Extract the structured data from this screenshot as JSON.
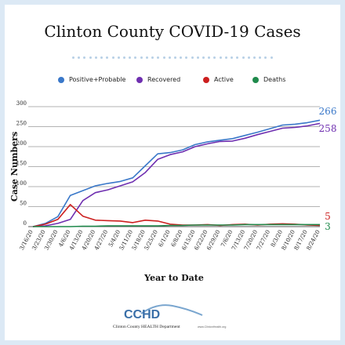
{
  "title": "Clinton County COVID-19 Cases",
  "chart_data": {
    "type": "line",
    "xlabel": "Year to Date",
    "ylabel": "Case Numbers",
    "ylim": [
      0,
      300
    ],
    "yticks": [
      0,
      50,
      100,
      150,
      200,
      250,
      300
    ],
    "grid": "horizontal",
    "legend": "top",
    "categories": [
      "3/16/20",
      "3/23/20",
      "3/30/20",
      "4/6/20",
      "4/13/20",
      "4/20/20",
      "4/27/20",
      "5/4/20",
      "5/11/20",
      "5/18/20",
      "5/25/20",
      "6/1/20",
      "6/8/20",
      "6/15/20",
      "6/22/20",
      "6/29/20",
      "7/6/20",
      "7/13/20",
      "7/20/20",
      "7/27/20",
      "8/3/20",
      "8/10/20",
      "8/17/20",
      "8/24/20"
    ],
    "series": [
      {
        "name": "Positive+Probable",
        "color": "#3a78c9",
        "values": [
          0,
          8,
          25,
          78,
          90,
          102,
          108,
          113,
          122,
          152,
          182,
          185,
          192,
          205,
          212,
          216,
          220,
          228,
          236,
          245,
          254,
          256,
          260,
          266
        ]
      },
      {
        "name": "Recovered",
        "color": "#6f2fb0",
        "values": [
          0,
          2,
          8,
          18,
          65,
          85,
          92,
          102,
          112,
          135,
          168,
          180,
          187,
          200,
          207,
          213,
          214,
          221,
          230,
          238,
          246,
          248,
          252,
          258
        ]
      },
      {
        "name": "Active",
        "color": "#cc1f1f",
        "values": [
          0,
          6,
          18,
          55,
          26,
          16,
          15,
          14,
          10,
          16,
          14,
          6,
          4,
          4,
          5,
          3,
          5,
          6,
          4,
          6,
          7,
          6,
          4,
          3
        ]
      },
      {
        "name": "Deaths",
        "color": "#1f8a4c",
        "values": [
          0,
          0,
          0,
          0,
          1,
          1,
          2,
          2,
          2,
          2,
          2,
          3,
          3,
          4,
          4,
          4,
          4,
          5,
          5,
          5,
          5,
          5,
          5,
          5
        ]
      }
    ],
    "end_labels": [
      "266",
      "258",
      "5",
      "3"
    ]
  },
  "footer": {
    "logo_text": "CCHD",
    "dept_name": "Clinton County HEALTH Department",
    "url": "www.ClintonHealth.org"
  }
}
